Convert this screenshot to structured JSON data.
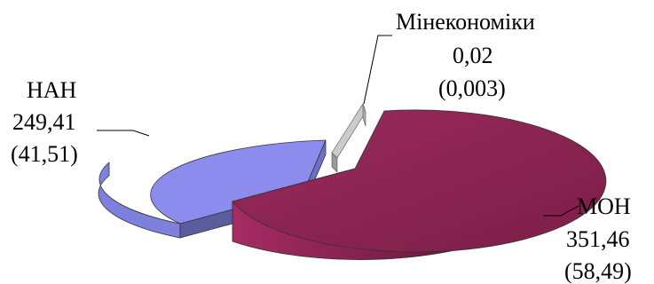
{
  "chart_data": {
    "type": "pie",
    "style": "3d-exploded",
    "legend": "none",
    "slices": [
      {
        "name": "МОН",
        "value": "351,46",
        "percent": "(58,49)",
        "color": "#8B2252"
      },
      {
        "name": "НАН",
        "value": "249,41",
        "percent": "(41,51)",
        "color": "#8C8CEF"
      },
      {
        "name": "Мінекономіки",
        "value": "0,02",
        "percent": "(0,003)",
        "color": "#CBCBCB"
      }
    ]
  }
}
